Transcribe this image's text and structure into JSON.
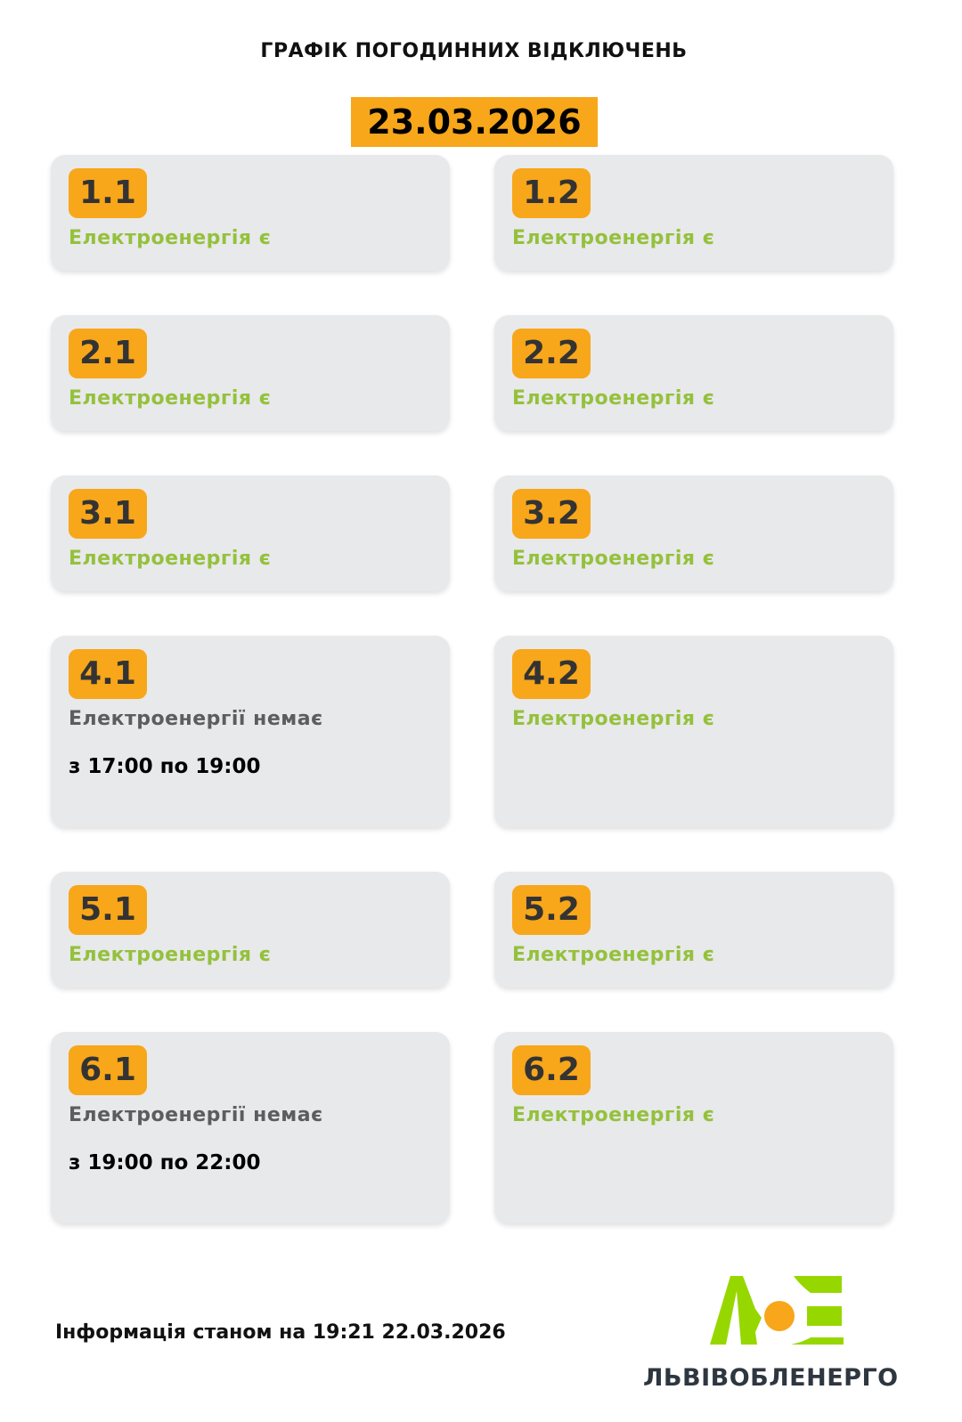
{
  "header": {
    "title": "ГРАФІК ПОГОДИННИХ ВІДКЛЮЧЕНЬ",
    "date": "23.03.2026"
  },
  "groups": [
    {
      "id": "1.1",
      "status": "Електроенергія є",
      "power": true
    },
    {
      "id": "1.2",
      "status": "Електроенергія є",
      "power": true
    },
    {
      "id": "2.1",
      "status": "Електроенергія є",
      "power": true
    },
    {
      "id": "2.2",
      "status": "Електроенергія є",
      "power": true
    },
    {
      "id": "3.1",
      "status": "Електроенергія є",
      "power": true
    },
    {
      "id": "3.2",
      "status": "Електроенергія є",
      "power": true
    },
    {
      "id": "4.1",
      "status": "Електроенергії немає",
      "power": false,
      "time": "з 17:00 по 19:00"
    },
    {
      "id": "4.2",
      "status": "Електроенергія є",
      "power": true
    },
    {
      "id": "5.1",
      "status": "Електроенергія є",
      "power": true
    },
    {
      "id": "5.2",
      "status": "Електроенергія є",
      "power": true
    },
    {
      "id": "6.1",
      "status": "Електроенергії немає",
      "power": false,
      "time": "з 19:00 по 22:00"
    },
    {
      "id": "6.2",
      "status": "Електроенергія є",
      "power": true
    }
  ],
  "footer": {
    "info": "Інформація станом на 19:21 22.03.2026",
    "logo_text": "ЛЬВІВОБЛЕНЕРГО",
    "logo_letters": "ЛОЕ"
  },
  "colors": {
    "accent": "#f8a61a",
    "power_on": "#94c13d",
    "power_off": "#5d5d5d",
    "card": "#e8e9ea",
    "logo_green": "#97d700"
  }
}
